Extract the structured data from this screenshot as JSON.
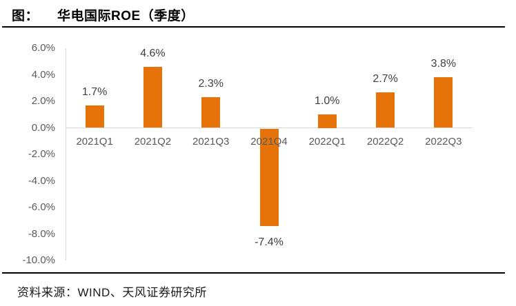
{
  "header": {
    "prefix": "图：",
    "title": "华电国际ROE（季度）"
  },
  "chart_data": {
    "type": "bar",
    "title": "华电国际ROE（季度）",
    "categories": [
      "2021Q1",
      "2021Q2",
      "2021Q3",
      "2021Q4",
      "2022Q1",
      "2022Q2",
      "2022Q3"
    ],
    "values": [
      1.7,
      4.6,
      2.3,
      -7.4,
      1.0,
      2.7,
      3.8
    ],
    "value_labels": [
      "1.7%",
      "4.6%",
      "2.3%",
      "-7.4%",
      "1.0%",
      "2.7%",
      "3.8%"
    ],
    "ylabel": "",
    "xlabel": "",
    "ylim": [
      -10,
      6
    ],
    "ytick_labels": [
      "6.0%",
      "4.0%",
      "2.0%",
      "0.0%",
      "-2.0%",
      "-4.0%",
      "-6.0%",
      "-8.0%",
      "-10.0%"
    ],
    "grid": false,
    "legend": false,
    "bar_color": "#e6730a",
    "axis_color": "#d6d6d6",
    "label_color": "#404040",
    "tick_color": "#595959"
  },
  "footer": {
    "source": "资料来源：WIND、天风证券研究所"
  }
}
